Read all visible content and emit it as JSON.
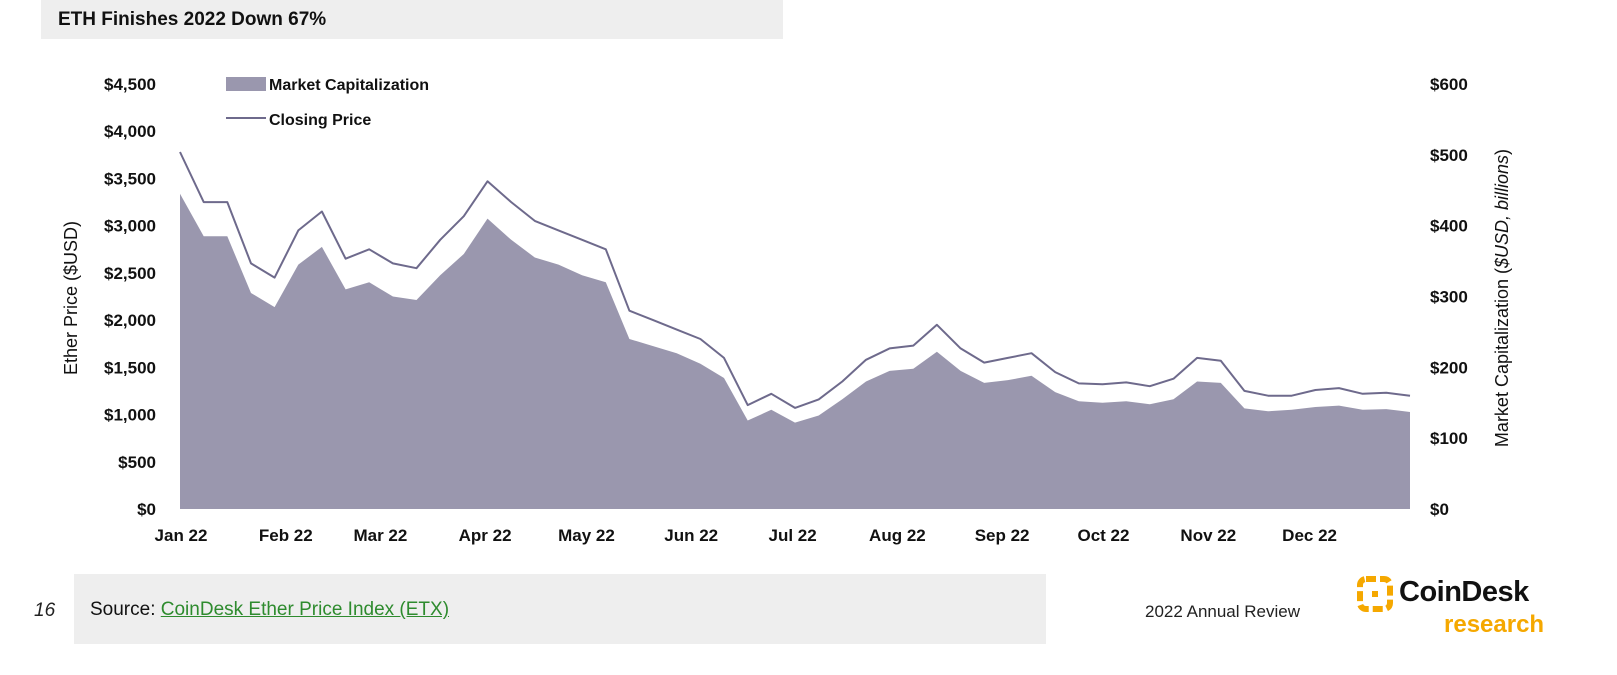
{
  "title": "ETH Finishes 2022 Down 67%",
  "page_number": "16",
  "source": {
    "prefix": "Source: ",
    "link_text": "CoinDesk Ether Price Index (ETX)"
  },
  "report_label": "2022 Annual Review",
  "logo": {
    "name": "CoinDesk",
    "sub": "research",
    "accent_color": "#f5a800"
  },
  "colors": {
    "area": "#9a97ae",
    "line": "#6e6a8c",
    "link": "#2e8b2e"
  },
  "chart_data": {
    "type": "area",
    "ylabel_left": "Ether Price ($USD)",
    "ylabel_right": "Market Capitalization ($USD, billions)",
    "y_left_ticks": [
      "$0",
      "$500",
      "$1,000",
      "$1,500",
      "$2,000",
      "$2,500",
      "$3,000",
      "$3,500",
      "$4,000",
      "$4,500"
    ],
    "y_right_ticks": [
      "$0",
      "$100",
      "$200",
      "$300",
      "$400",
      "$500",
      "$600"
    ],
    "ylim_left": [
      0,
      4500
    ],
    "ylim_right": [
      0,
      600
    ],
    "x_tick_labels": [
      "Jan 22",
      "Feb 22",
      "Mar 22",
      "Apr 22",
      "May 22",
      "Jun 22",
      "Jul 22",
      "Aug 22",
      "Sep 22",
      "Oct 22",
      "Nov 22",
      "Dec 22"
    ],
    "grid": false,
    "legend_position": "top-left",
    "x": [
      "2022-01-01",
      "2022-01-08",
      "2022-01-15",
      "2022-01-22",
      "2022-01-29",
      "2022-02-05",
      "2022-02-12",
      "2022-02-19",
      "2022-02-26",
      "2022-03-05",
      "2022-03-12",
      "2022-03-19",
      "2022-03-26",
      "2022-04-02",
      "2022-04-09",
      "2022-04-16",
      "2022-04-23",
      "2022-04-30",
      "2022-05-07",
      "2022-05-14",
      "2022-05-21",
      "2022-05-28",
      "2022-06-04",
      "2022-06-11",
      "2022-06-18",
      "2022-06-25",
      "2022-07-02",
      "2022-07-09",
      "2022-07-16",
      "2022-07-23",
      "2022-07-30",
      "2022-08-06",
      "2022-08-13",
      "2022-08-20",
      "2022-08-27",
      "2022-09-03",
      "2022-09-10",
      "2022-09-17",
      "2022-09-24",
      "2022-10-01",
      "2022-10-08",
      "2022-10-15",
      "2022-10-22",
      "2022-10-29",
      "2022-11-05",
      "2022-11-12",
      "2022-11-19",
      "2022-11-26",
      "2022-12-03",
      "2022-12-10",
      "2022-12-17",
      "2022-12-24",
      "2022-12-31"
    ],
    "series": [
      {
        "name": "Closing Price",
        "type": "line",
        "axis": "left",
        "values": [
          3780,
          3250,
          3250,
          2600,
          2450,
          2950,
          3150,
          2650,
          2750,
          2600,
          2550,
          2850,
          3100,
          3470,
          3250,
          3050,
          2950,
          2850,
          2750,
          2100,
          2000,
          1900,
          1800,
          1600,
          1100,
          1220,
          1070,
          1160,
          1350,
          1580,
          1700,
          1730,
          1950,
          1700,
          1550,
          1600,
          1650,
          1450,
          1330,
          1320,
          1340,
          1300,
          1380,
          1600,
          1570,
          1250,
          1200,
          1200,
          1260,
          1280,
          1220,
          1230,
          1200
        ]
      },
      {
        "name": "Market Capitalization",
        "type": "area",
        "axis": "right",
        "values": [
          445,
          385,
          385,
          305,
          285,
          345,
          370,
          310,
          320,
          300,
          295,
          330,
          360,
          410,
          380,
          355,
          345,
          330,
          320,
          240,
          230,
          220,
          205,
          185,
          125,
          140,
          122,
          132,
          155,
          180,
          195,
          198,
          222,
          195,
          178,
          182,
          188,
          165,
          152,
          150,
          152,
          148,
          155,
          180,
          178,
          142,
          138,
          140,
          144,
          146,
          140,
          141,
          137
        ]
      }
    ]
  }
}
